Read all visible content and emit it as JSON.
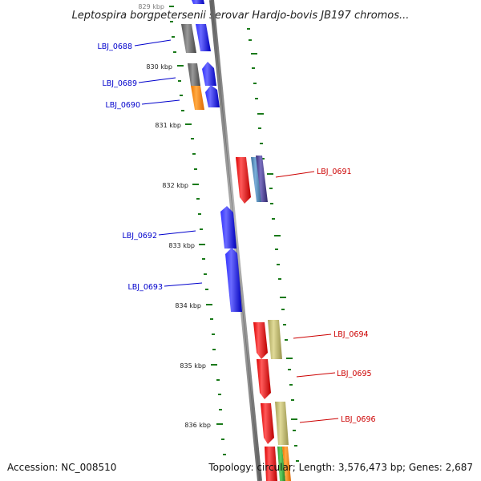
{
  "title": "Leptospira borgpetersenii serovar Hardjo-bovis JB197 chromos...",
  "footer": {
    "accession": "Accession: NC_008510",
    "summary": "Topology: circular; Length: 3,576,473 bp; Genes: 2,687"
  },
  "colors": {
    "forward_label": "#0000cc",
    "reverse_label": "#cc0000",
    "backbone": "#888888",
    "tick": "#1a7a1a",
    "blue": "#0000ee",
    "red": "#ee0000",
    "gray": "#777777",
    "orange": "#ff8800",
    "khaki": "#bdb76b",
    "steelblue": "#4682b4",
    "slateblue": "#483d8b",
    "green": "#33aa33"
  },
  "kbp_ticks": [
    "829 kbp",
    "830 kbp",
    "831 kbp",
    "832 kbp",
    "833 kbp",
    "834 kbp",
    "835 kbp",
    "836 kbp"
  ],
  "gene_labels": {
    "lbj_0688": "LBJ_0688",
    "lbj_0689": "LBJ_0689",
    "lbj_0690": "LBJ_0690",
    "lbj_0691": "LBJ_0691",
    "lbj_0692": "LBJ_0692",
    "lbj_0693": "LBJ_0693",
    "lbj_0694": "LBJ_0694",
    "lbj_0695": "LBJ_0695",
    "lbj_0696": "LBJ_0696"
  }
}
